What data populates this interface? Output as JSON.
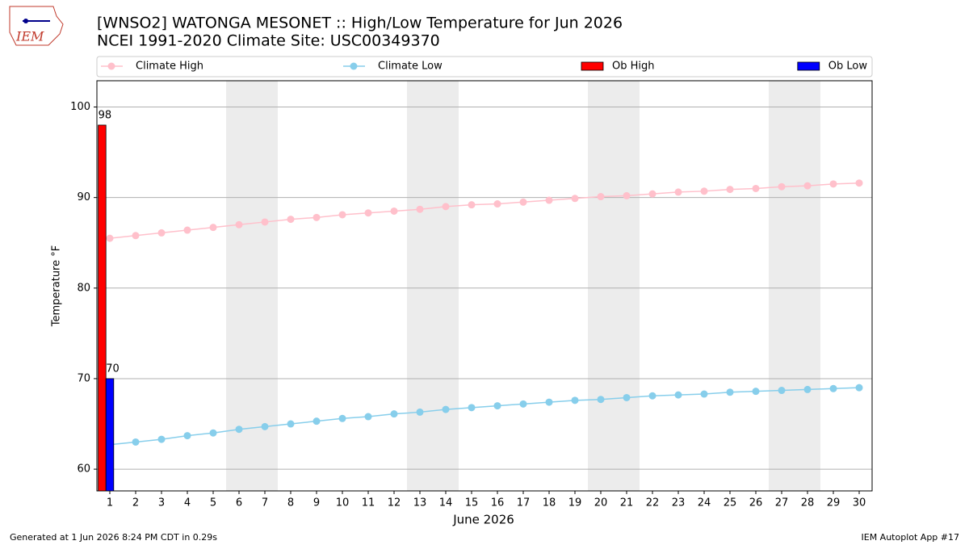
{
  "chart_data": {
    "type": "line",
    "title": "[WNSO2] WATONGA MESONET :: High/Low Temperature for Jun 2026",
    "subtitle": "NCEI 1991-2020 Climate Site: USC00349370",
    "x_label": "June 2026",
    "y_label": "Temperature °F",
    "x": [
      1,
      2,
      3,
      4,
      5,
      6,
      7,
      8,
      9,
      10,
      11,
      12,
      13,
      14,
      15,
      16,
      17,
      18,
      19,
      20,
      21,
      22,
      23,
      24,
      25,
      26,
      27,
      28,
      29,
      30
    ],
    "xlim": [
      0.5,
      30.5
    ],
    "xticks": [
      1,
      2,
      3,
      4,
      5,
      6,
      7,
      8,
      9,
      10,
      11,
      12,
      13,
      14,
      15,
      16,
      17,
      18,
      19,
      20,
      21,
      22,
      23,
      24,
      25,
      26,
      27,
      28,
      29,
      30
    ],
    "ylim": [
      57.6,
      102.9
    ],
    "yticks": [
      60,
      70,
      80,
      90,
      100
    ],
    "grid": true,
    "weekend_spans": [
      [
        5.5,
        7.5
      ],
      [
        12.5,
        14.5
      ],
      [
        19.5,
        21.5
      ],
      [
        26.5,
        28.5
      ]
    ],
    "series": [
      {
        "name": "Climate High",
        "color": "#ffc0cb",
        "kind": "line",
        "values": [
          85.5,
          85.8,
          86.1,
          86.4,
          86.7,
          87.0,
          87.3,
          87.6,
          87.8,
          88.1,
          88.3,
          88.5,
          88.7,
          89.0,
          89.2,
          89.3,
          89.5,
          89.7,
          89.9,
          90.1,
          90.2,
          90.4,
          90.6,
          90.7,
          90.9,
          91.0,
          91.2,
          91.3,
          91.5,
          91.6
        ]
      },
      {
        "name": "Climate Low",
        "color": "#87ceeb",
        "kind": "line",
        "values": [
          62.7,
          63.0,
          63.3,
          63.7,
          64.0,
          64.4,
          64.7,
          65.0,
          65.3,
          65.6,
          65.8,
          66.1,
          66.3,
          66.6,
          66.8,
          67.0,
          67.2,
          67.4,
          67.6,
          67.7,
          67.9,
          68.1,
          68.2,
          68.3,
          68.5,
          68.6,
          68.7,
          68.8,
          68.9,
          69.0
        ]
      },
      {
        "name": "Ob High",
        "color": "#ff0000",
        "kind": "bar",
        "values": [
          98,
          null,
          null,
          null,
          null,
          null,
          null,
          null,
          null,
          null,
          null,
          null,
          null,
          null,
          null,
          null,
          null,
          null,
          null,
          null,
          null,
          null,
          null,
          null,
          null,
          null,
          null,
          null,
          null,
          null
        ]
      },
      {
        "name": "Ob Low",
        "color": "#0000ff",
        "kind": "bar",
        "values": [
          70,
          null,
          null,
          null,
          null,
          null,
          null,
          null,
          null,
          null,
          null,
          null,
          null,
          null,
          null,
          null,
          null,
          null,
          null,
          null,
          null,
          null,
          null,
          null,
          null,
          null,
          null,
          null,
          null,
          null
        ]
      }
    ]
  },
  "footer_left": "Generated at 1 Jun 2026 8:24 PM CDT in 0.29s",
  "footer_right": "IEM Autoplot App #17",
  "logo_text": "IEM"
}
